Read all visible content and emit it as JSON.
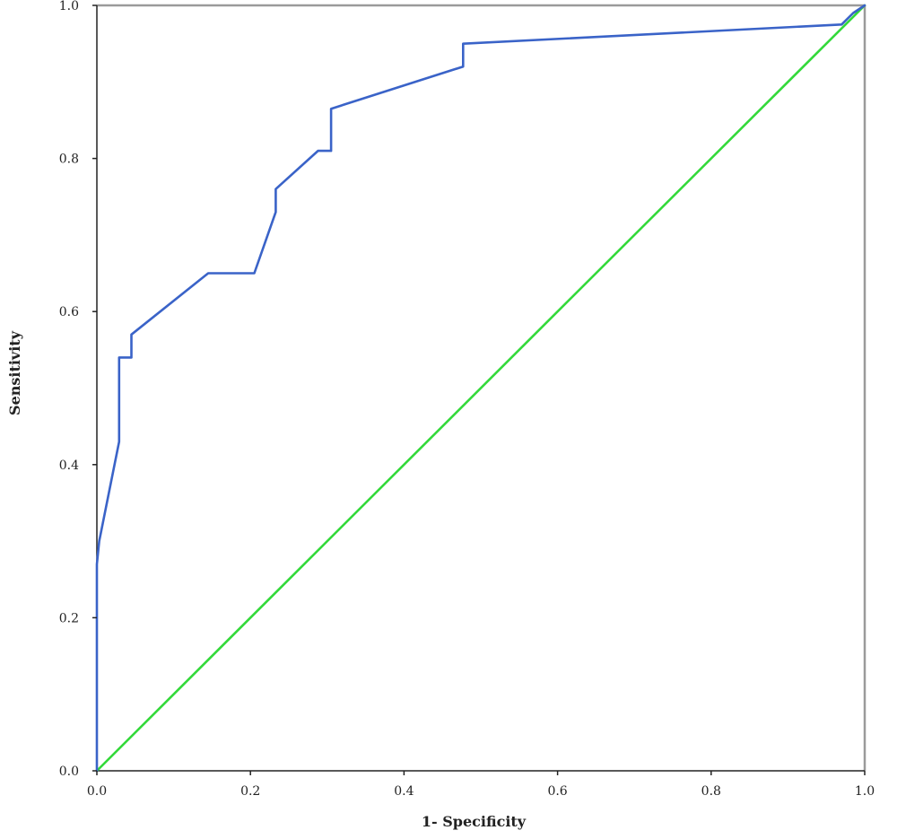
{
  "chart_data": {
    "type": "line",
    "title": "",
    "xlabel": "1- Specificity",
    "ylabel": "Sensitivity",
    "xlim": [
      0.0,
      1.0
    ],
    "ylim": [
      0.0,
      1.0
    ],
    "x_ticks": [
      "0.0",
      "0.2",
      "0.4",
      "0.6",
      "0.8",
      "1.0"
    ],
    "y_ticks": [
      "0.0",
      "0.2",
      "0.4",
      "0.6",
      "0.8",
      "1.0"
    ],
    "grid": false,
    "legend": "none",
    "series": [
      {
        "color": "#3a63c8",
        "style": "solid",
        "points": [
          [
            0.0,
            0.0
          ],
          [
            0.0,
            0.27
          ],
          [
            0.003,
            0.3
          ],
          [
            0.029,
            0.43
          ],
          [
            0.029,
            0.54
          ],
          [
            0.045,
            0.54
          ],
          [
            0.045,
            0.57
          ],
          [
            0.145,
            0.65
          ],
          [
            0.205,
            0.65
          ],
          [
            0.233,
            0.73
          ],
          [
            0.233,
            0.76
          ],
          [
            0.288,
            0.81
          ],
          [
            0.305,
            0.81
          ],
          [
            0.305,
            0.865
          ],
          [
            0.477,
            0.92
          ],
          [
            0.477,
            0.95
          ],
          [
            0.97,
            0.975
          ],
          [
            0.985,
            0.99
          ],
          [
            1.0,
            1.0
          ]
        ]
      },
      {
        "color": "#33d93a",
        "style": "solid",
        "points": [
          [
            0.0,
            0.0
          ],
          [
            1.0,
            1.0
          ]
        ]
      }
    ],
    "colors": {
      "axis": "#222222",
      "frame_top": "#9a9a9a",
      "frame_right": "#9a9a9a"
    }
  }
}
